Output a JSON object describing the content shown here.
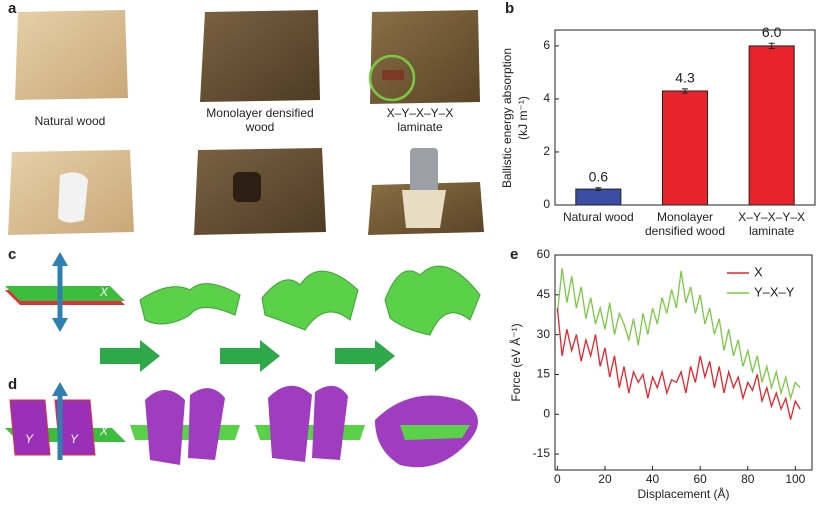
{
  "panels": {
    "a": "a",
    "b": "b",
    "c": "c",
    "d": "d",
    "e": "e"
  },
  "photos": {
    "captions": [
      "Natural wood",
      "Monolayer densified wood",
      "X–Y–X–Y–X laminate"
    ]
  },
  "diagrams": {
    "c_labels": [
      "X"
    ],
    "d_labels": [
      "Y",
      "Y",
      "X"
    ]
  },
  "chart_data": [
    {
      "type": "bar",
      "categories": [
        "Natural wood",
        "Monolayer densified wood",
        "X–Y–X–Y–X laminate"
      ],
      "values": [
        0.6,
        4.3,
        6.0
      ],
      "value_labels": [
        "0.6",
        "4.3",
        "6.0"
      ],
      "errors": [
        0.05,
        0.08,
        0.1
      ],
      "colors": [
        "#3b4ea3",
        "#e8232a",
        "#e8232a"
      ],
      "ylabel": [
        "Ballistic energy absorption",
        "(kJ m⁻¹)"
      ],
      "ylim": [
        0,
        6.6
      ],
      "yticks": [
        0,
        2,
        4,
        6
      ]
    },
    {
      "type": "line",
      "xlabel": "Displacement (Å)",
      "ylabel": "Force (eV Å⁻¹)",
      "x": [
        0,
        2,
        4,
        6,
        8,
        10,
        12,
        14,
        16,
        18,
        20,
        22,
        24,
        26,
        28,
        30,
        32,
        34,
        36,
        38,
        40,
        42,
        44,
        46,
        48,
        50,
        52,
        54,
        56,
        58,
        60,
        62,
        64,
        66,
        68,
        70,
        72,
        74,
        76,
        78,
        80,
        82,
        84,
        86,
        88,
        90,
        92,
        94,
        96,
        98,
        100,
        102
      ],
      "series": [
        {
          "name": "X",
          "color": "#e8232a",
          "values": [
            40,
            22,
            32,
            24,
            30,
            20,
            28,
            22,
            30,
            18,
            25,
            14,
            22,
            10,
            18,
            8,
            16,
            12,
            15,
            6,
            14,
            10,
            16,
            8,
            13,
            12,
            16,
            8,
            18,
            12,
            22,
            14,
            20,
            10,
            18,
            8,
            16,
            10,
            14,
            6,
            12,
            9,
            15,
            5,
            10,
            3,
            8,
            2,
            6,
            -2,
            5,
            2
          ]
        },
        {
          "name": "Y–X–Y",
          "color": "#7ac943",
          "values": [
            38,
            55,
            42,
            52,
            40,
            48,
            36,
            44,
            34,
            40,
            32,
            42,
            30,
            38,
            34,
            28,
            36,
            26,
            38,
            30,
            40,
            34,
            44,
            38,
            47,
            40,
            54,
            42,
            48,
            38,
            45,
            34,
            40,
            30,
            36,
            24,
            32,
            22,
            28,
            18,
            24,
            16,
            22,
            12,
            18,
            10,
            16,
            8,
            14,
            6,
            12,
            10
          ]
        }
      ],
      "legend": "upper right",
      "xlim": [
        -1,
        107
      ],
      "xticks": [
        0,
        20,
        40,
        60,
        80,
        100
      ],
      "ylim": [
        -21,
        60
      ],
      "yticks": [
        -15,
        0,
        15,
        30,
        45,
        60
      ]
    }
  ]
}
